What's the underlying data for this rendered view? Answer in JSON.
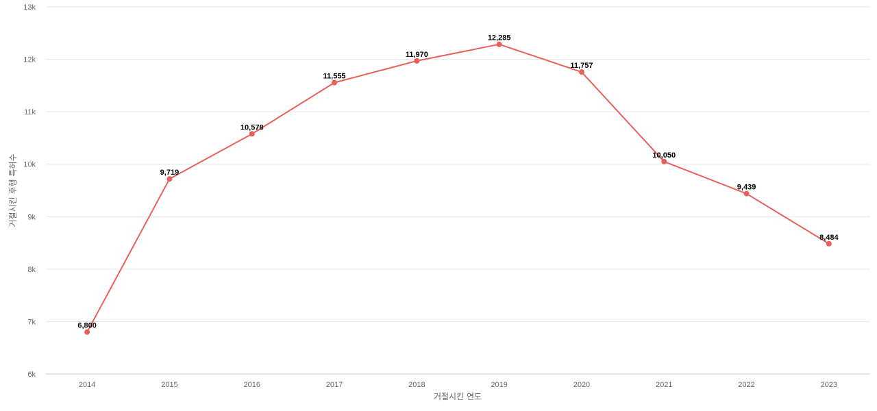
{
  "chart_data": {
    "type": "line",
    "xlabel": "거절시킨 연도",
    "ylabel": "거절시킨 후행 특허수",
    "x": [
      "2014",
      "2015",
      "2016",
      "2017",
      "2018",
      "2019",
      "2020",
      "2021",
      "2022",
      "2023"
    ],
    "series": [
      {
        "values": [
          6800,
          9719,
          10578,
          11555,
          11970,
          12285,
          11757,
          10050,
          9439,
          8484
        ],
        "labels": [
          "6,800",
          "9,719",
          "10,578",
          "11,555",
          "11,970",
          "12,285",
          "11,757",
          "10,050",
          "9,439",
          "8,484"
        ],
        "color": "#e8605a"
      }
    ],
    "ylim": [
      6000,
      13000
    ],
    "yticks": [
      6000,
      7000,
      8000,
      9000,
      10000,
      11000,
      12000,
      13000
    ],
    "ytick_labels": [
      "6k",
      "7k",
      "8k",
      "9k",
      "10k",
      "11k",
      "12k",
      "13k"
    ],
    "grid": true,
    "legend": "none"
  }
}
